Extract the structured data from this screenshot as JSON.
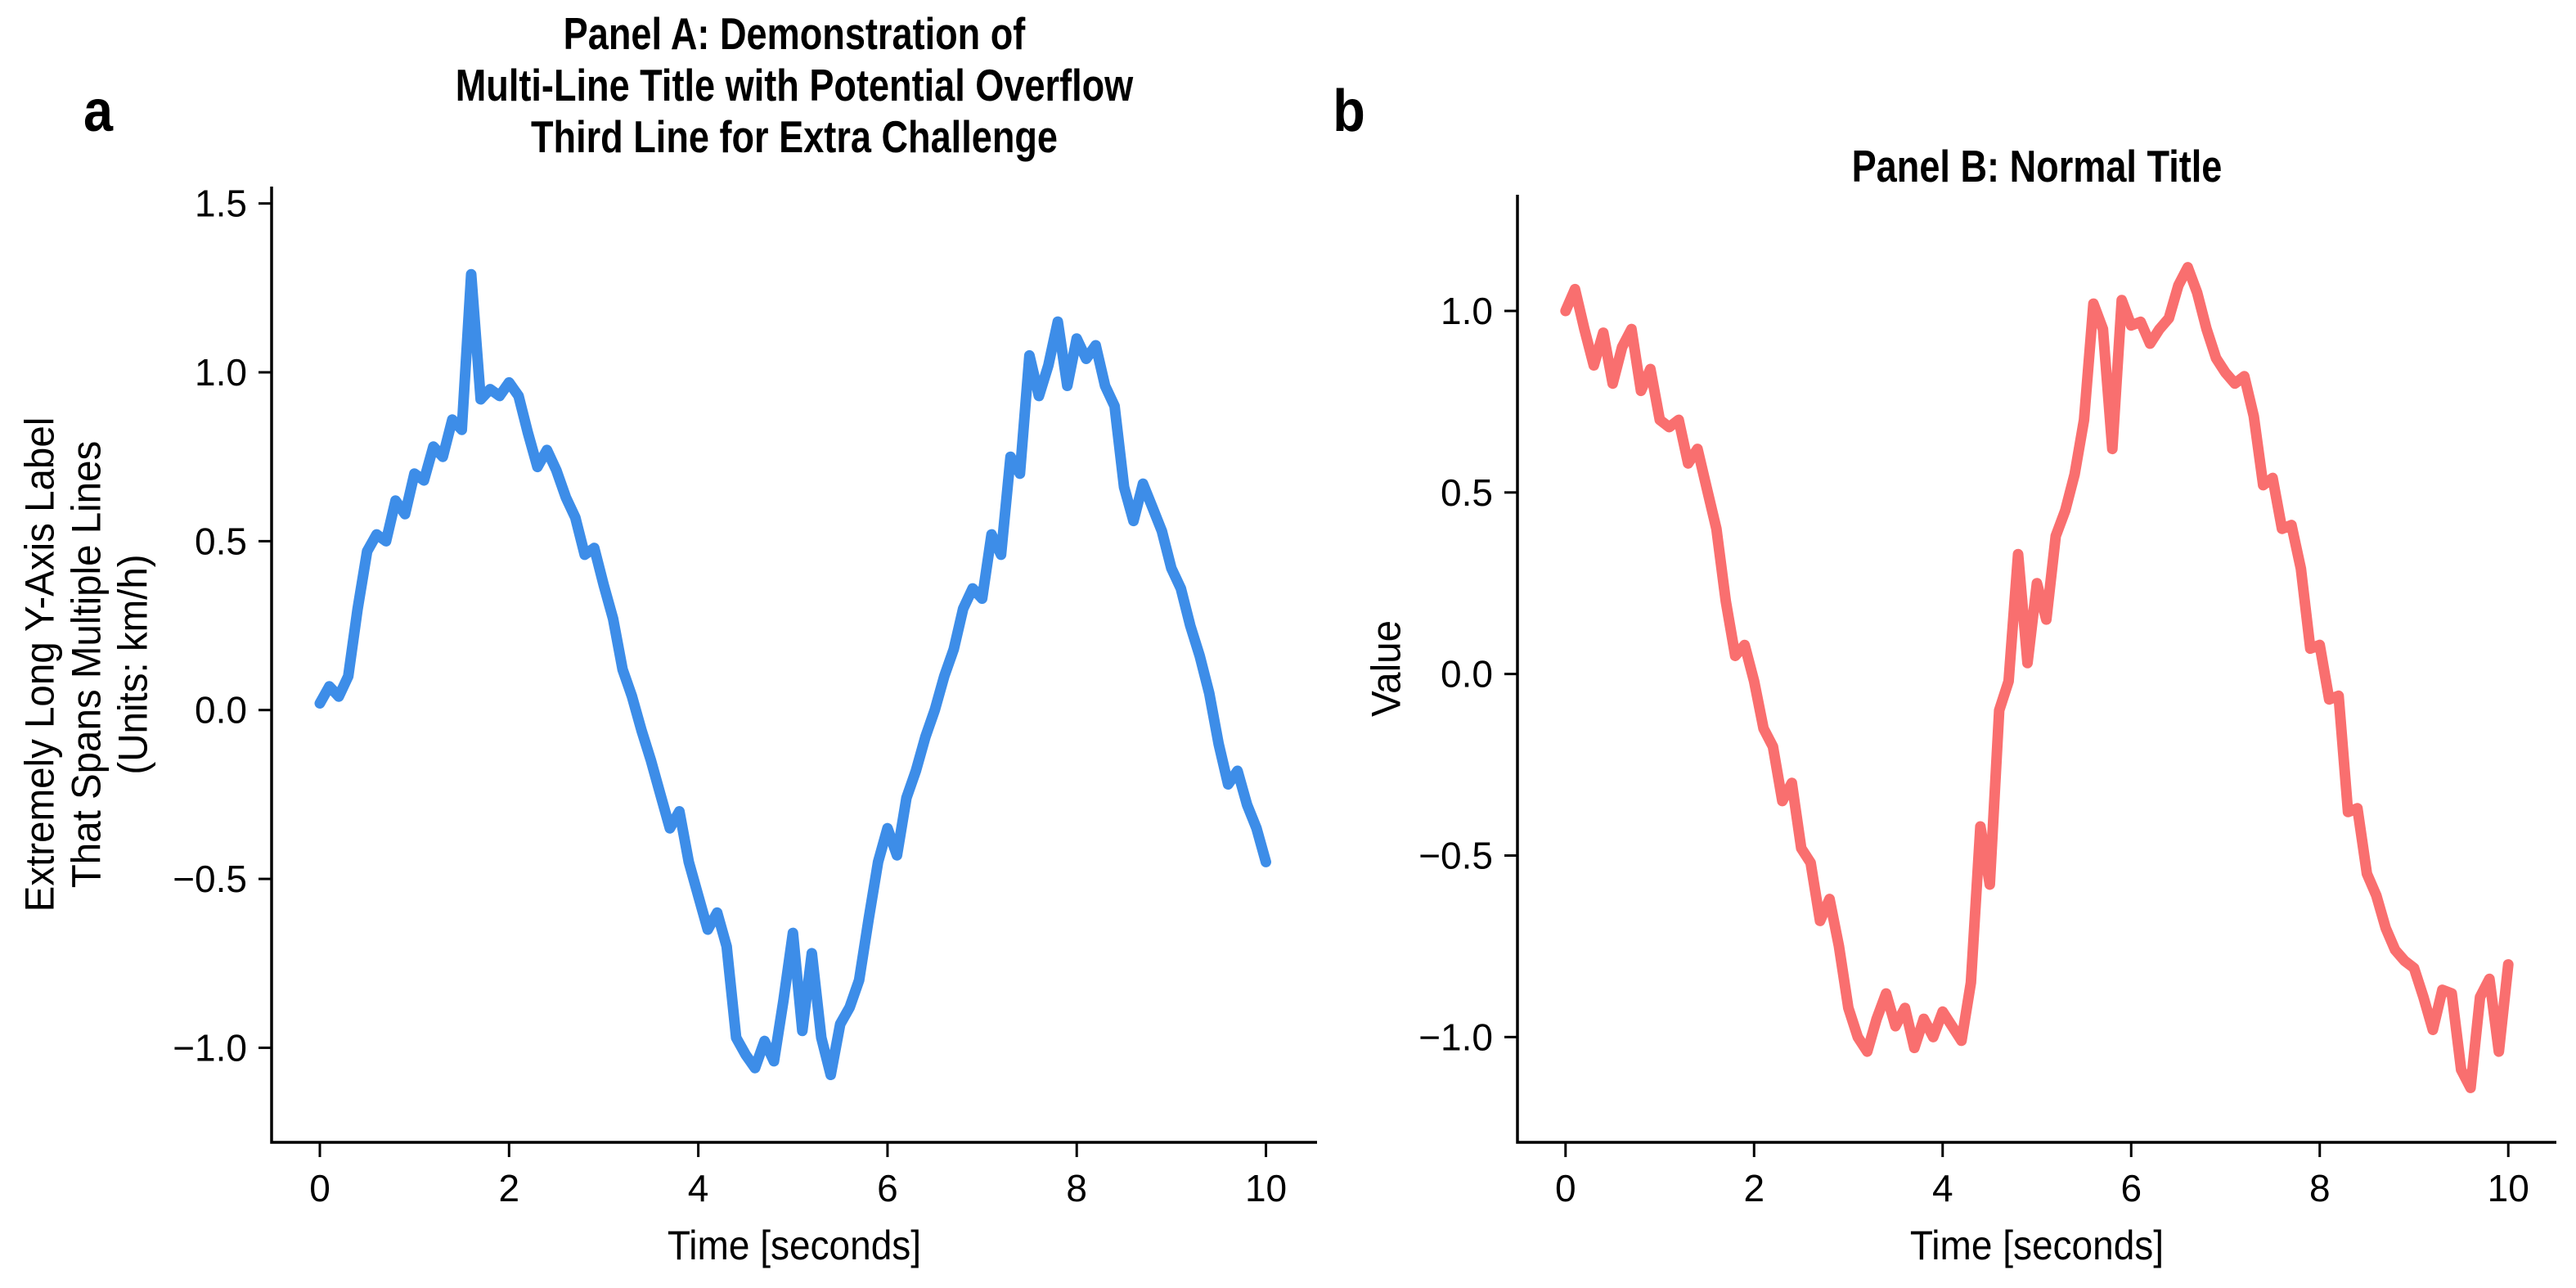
{
  "figure_background": "#ffffff",
  "text_color": "#000000",
  "chart_data": [
    {
      "type": "line",
      "panel_letter": "a",
      "title": "Panel A: Demonstration of\nMulti-Line Title with Potential Overflow\nThird Line for Extra Challenge",
      "xlabel": "Time [seconds]",
      "ylabel": "Extremely Long Y-Axis Label\nThat Spans Multiple Lines\n(Units: km/h)",
      "line_color": "#3D8DE8",
      "axis_color": "#000000",
      "legend": "none",
      "grid": false,
      "xlim": [
        -0.51,
        10.54
      ],
      "ylim": [
        -1.28,
        1.55
      ],
      "xticks": [
        0,
        2,
        4,
        6,
        8,
        10
      ],
      "xtick_labels": [
        "0",
        "2",
        "4",
        "6",
        "8",
        "10"
      ],
      "yticks": [
        1.5,
        1.0,
        0.5,
        0.0,
        -0.5,
        -1.0
      ],
      "ytick_labels": [
        "1.5",
        "1.0",
        "0.5",
        "0.0",
        "−0.5",
        "−1.0"
      ],
      "x": [
        0.0,
        0.1,
        0.2,
        0.3,
        0.4,
        0.5,
        0.6,
        0.7,
        0.8,
        0.9,
        1.0,
        1.1,
        1.2,
        1.3,
        1.4,
        1.5,
        1.6,
        1.7,
        1.8,
        1.9,
        2.0,
        2.1,
        2.2,
        2.3,
        2.4,
        2.5,
        2.6,
        2.7,
        2.8,
        2.9,
        3.0,
        3.1,
        3.2,
        3.3,
        3.4,
        3.5,
        3.6,
        3.7,
        3.8,
        3.9,
        4.0,
        4.1,
        4.2,
        4.3,
        4.4,
        4.5,
        4.6,
        4.7,
        4.8,
        4.9,
        5.0,
        5.1,
        5.2,
        5.3,
        5.4,
        5.5,
        5.6,
        5.7,
        5.8,
        5.9,
        6.0,
        6.1,
        6.2,
        6.3,
        6.4,
        6.5,
        6.6,
        6.7,
        6.8,
        6.9,
        7.0,
        7.1,
        7.2,
        7.3,
        7.4,
        7.5,
        7.6,
        7.7,
        7.8,
        7.9,
        8.0,
        8.1,
        8.2,
        8.3,
        8.4,
        8.5,
        8.6,
        8.7,
        8.8,
        8.9,
        9.0,
        9.1,
        9.2,
        9.3,
        9.4,
        9.5,
        9.6,
        9.7,
        9.8,
        9.9,
        10.0
      ],
      "y": [
        0.02,
        0.07,
        0.04,
        0.1,
        0.3,
        0.47,
        0.52,
        0.5,
        0.62,
        0.58,
        0.7,
        0.68,
        0.78,
        0.75,
        0.86,
        0.83,
        1.29,
        0.92,
        0.95,
        0.93,
        0.97,
        0.93,
        0.82,
        0.72,
        0.77,
        0.71,
        0.63,
        0.57,
        0.46,
        0.48,
        0.37,
        0.27,
        0.12,
        0.04,
        -0.06,
        -0.15,
        -0.25,
        -0.35,
        -0.3,
        -0.45,
        -0.55,
        -0.65,
        -0.6,
        -0.7,
        -0.97,
        -1.02,
        -1.06,
        -0.98,
        -1.04,
        -0.86,
        -0.66,
        -0.95,
        -0.72,
        -0.97,
        -1.08,
        -0.93,
        -0.88,
        -0.8,
        -0.62,
        -0.45,
        -0.35,
        -0.43,
        -0.26,
        -0.18,
        -0.08,
        0.0,
        0.1,
        0.18,
        0.3,
        0.36,
        0.33,
        0.52,
        0.46,
        0.75,
        0.7,
        1.05,
        0.93,
        1.02,
        1.15,
        0.96,
        1.1,
        1.04,
        1.08,
        0.96,
        0.9,
        0.66,
        0.56,
        0.67,
        0.6,
        0.53,
        0.42,
        0.36,
        0.25,
        0.16,
        0.05,
        -0.1,
        -0.22,
        -0.18,
        -0.28,
        -0.35,
        -0.45
      ]
    },
    {
      "type": "line",
      "panel_letter": "b",
      "title": "Panel B: Normal Title",
      "xlabel": "Time [seconds]",
      "ylabel": "Value",
      "line_color": "#F96F6F",
      "axis_color": "#000000",
      "legend": "none",
      "grid": false,
      "xlim": [
        -0.51,
        10.51
      ],
      "ylim": [
        -1.29,
        1.32
      ],
      "xticks": [
        0,
        2,
        4,
        6,
        8,
        10
      ],
      "xtick_labels": [
        "0",
        "2",
        "4",
        "6",
        "8",
        "10"
      ],
      "yticks": [
        1.0,
        0.5,
        0.0,
        -0.5,
        -1.0
      ],
      "ytick_labels": [
        "1.0",
        "0.5",
        "0.0",
        "−0.5",
        "−1.0"
      ],
      "x": [
        0.0,
        0.1,
        0.2,
        0.3,
        0.4,
        0.5,
        0.6,
        0.7,
        0.8,
        0.9,
        1.0,
        1.1,
        1.2,
        1.3,
        1.4,
        1.5,
        1.6,
        1.7,
        1.8,
        1.9,
        2.0,
        2.1,
        2.2,
        2.3,
        2.4,
        2.5,
        2.6,
        2.7,
        2.8,
        2.9,
        3.0,
        3.1,
        3.2,
        3.3,
        3.4,
        3.5,
        3.6,
        3.7,
        3.8,
        3.9,
        4.0,
        4.1,
        4.2,
        4.3,
        4.4,
        4.5,
        4.6,
        4.7,
        4.8,
        4.9,
        5.0,
        5.1,
        5.2,
        5.3,
        5.4,
        5.5,
        5.6,
        5.7,
        5.8,
        5.9,
        6.0,
        6.1,
        6.2,
        6.3,
        6.4,
        6.5,
        6.6,
        6.7,
        6.8,
        6.9,
        7.0,
        7.1,
        7.2,
        7.3,
        7.4,
        7.5,
        7.6,
        7.7,
        7.8,
        7.9,
        8.0,
        8.1,
        8.2,
        8.3,
        8.4,
        8.5,
        8.6,
        8.7,
        8.8,
        8.9,
        9.0,
        9.1,
        9.2,
        9.3,
        9.4,
        9.5,
        9.6,
        9.7,
        9.8,
        9.9,
        10.0
      ],
      "y": [
        1.0,
        1.06,
        0.95,
        0.85,
        0.94,
        0.8,
        0.9,
        0.95,
        0.78,
        0.84,
        0.7,
        0.68,
        0.7,
        0.58,
        0.62,
        0.51,
        0.4,
        0.2,
        0.05,
        0.08,
        -0.02,
        -0.15,
        -0.2,
        -0.35,
        -0.3,
        -0.48,
        -0.52,
        -0.68,
        -0.62,
        -0.75,
        -0.92,
        -1.0,
        -1.04,
        -0.95,
        -0.88,
        -0.97,
        -0.92,
        -1.03,
        -0.95,
        -1.0,
        -0.93,
        -0.97,
        -1.01,
        -0.85,
        -0.42,
        -0.58,
        -0.1,
        -0.02,
        0.33,
        0.03,
        0.25,
        0.15,
        0.38,
        0.45,
        0.55,
        0.7,
        1.02,
        0.95,
        0.62,
        1.03,
        0.96,
        0.97,
        0.91,
        0.95,
        0.98,
        1.07,
        1.12,
        1.05,
        0.95,
        0.87,
        0.83,
        0.8,
        0.82,
        0.71,
        0.52,
        0.54,
        0.4,
        0.41,
        0.29,
        0.07,
        0.08,
        -0.07,
        -0.06,
        -0.38,
        -0.37,
        -0.55,
        -0.61,
        -0.7,
        -0.76,
        -0.79,
        -0.81,
        -0.89,
        -0.98,
        -0.87,
        -0.88,
        -1.09,
        -1.14,
        -0.89,
        -0.84,
        -1.04,
        -0.8
      ]
    }
  ]
}
